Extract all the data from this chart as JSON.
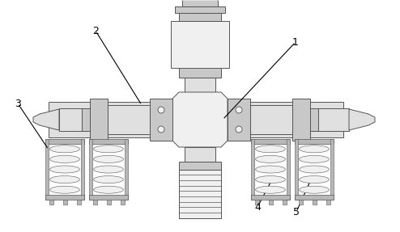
{
  "background_color": "#ffffff",
  "line_color": "#555555",
  "label_color": "#000000",
  "fc_light": "#f0f0f0",
  "fc_mid": "#e0e0e0",
  "fc_dark": "#c8c8c8",
  "fc_darker": "#b8b8b8"
}
